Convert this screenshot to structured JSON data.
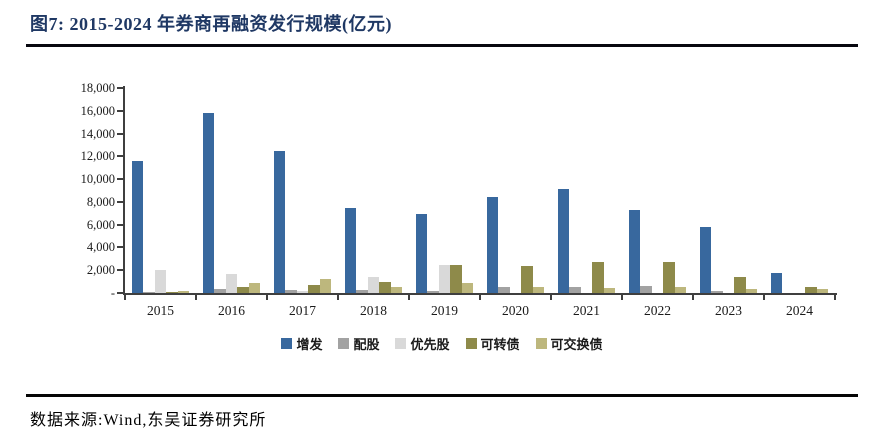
{
  "header": {
    "title": "图7:  2015-2024 年券商再融资发行规模(亿元)"
  },
  "footer": {
    "source": "数据来源:Wind,东吴证券研究所"
  },
  "chart_data": {
    "type": "bar",
    "title": "2015-2024 年券商再融资发行规模(亿元)",
    "unit": "亿元",
    "xlabel": "",
    "ylabel": "",
    "categories": [
      "2015",
      "2016",
      "2017",
      "2018",
      "2019",
      "2020",
      "2021",
      "2022",
      "2023",
      "2024"
    ],
    "series": [
      {
        "name": "增发",
        "color": "#38689e",
        "values": [
          11600,
          15800,
          12500,
          7500,
          6900,
          8400,
          9100,
          7300,
          5800,
          1800
        ]
      },
      {
        "name": "配股",
        "color": "#a2a2a2",
        "values": [
          100,
          350,
          260,
          230,
          200,
          550,
          550,
          600,
          150,
          0
        ]
      },
      {
        "name": "优先股",
        "color": "#d9d9d9",
        "values": [
          2000,
          1700,
          200,
          1400,
          2500,
          0,
          0,
          0,
          0,
          0
        ]
      },
      {
        "name": "可转债",
        "color": "#8e8a4a",
        "values": [
          100,
          550,
          700,
          1000,
          2500,
          2400,
          2700,
          2700,
          1400,
          500
        ]
      },
      {
        "name": "可交换债",
        "color": "#bdb77d",
        "values": [
          150,
          900,
          1200,
          550,
          850,
          500,
          450,
          500,
          350,
          350
        ]
      }
    ],
    "ylim": [
      0,
      18000
    ],
    "ytick_step": 2000,
    "ytick_labels": [
      "-",
      "2,000",
      "4,000",
      "6,000",
      "8,000",
      "10,000",
      "12,000",
      "14,000",
      "16,000",
      "18,000"
    ],
    "grid": false,
    "legend_position": "bottom",
    "axis_color": "#3f3f3f"
  }
}
